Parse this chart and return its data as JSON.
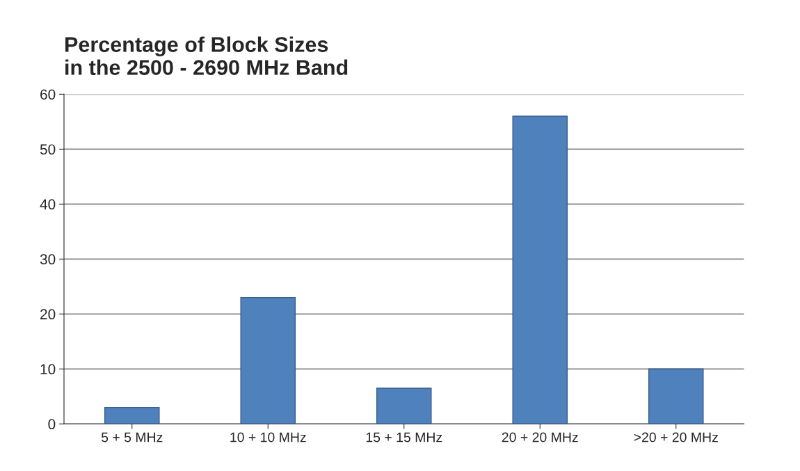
{
  "chart_data": {
    "type": "bar",
    "title": "Percentage of Block Sizes\nin the 2500 - 2690 MHz Band",
    "categories": [
      "5 + 5 MHz",
      "10 + 10 MHz",
      "15 + 15 MHz",
      "20 + 20 MHz",
      ">20 + 20 MHz"
    ],
    "values": [
      3,
      23,
      6.5,
      56,
      10
    ],
    "color": "#4f81bd",
    "ylim": [
      0,
      60
    ],
    "yticks": [
      0,
      10,
      20,
      30,
      40,
      50,
      60
    ],
    "grid": "y",
    "legend": false
  }
}
